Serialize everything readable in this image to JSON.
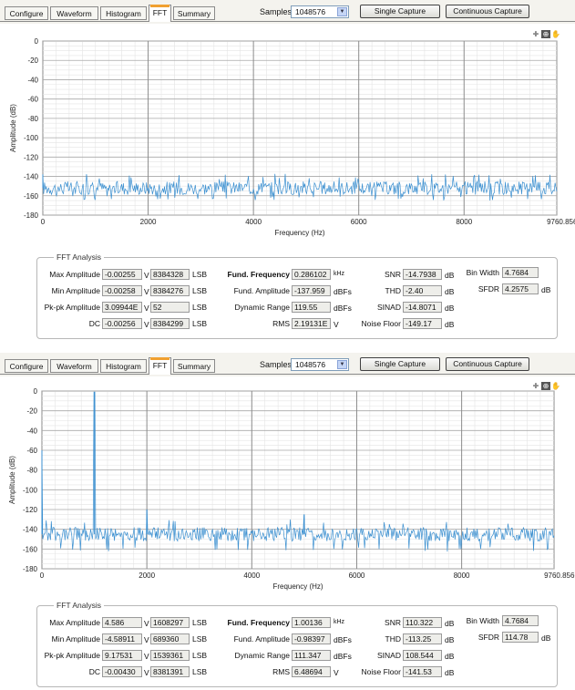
{
  "tabs": [
    "Configure",
    "Waveform",
    "Histogram",
    "FFT",
    "Summary"
  ],
  "active_tab": "FFT",
  "samples_label": "Samples",
  "samples_value": "1048576",
  "buttons": {
    "single": "Single Capture",
    "continuous": "Continuous Capture"
  },
  "plot": {
    "y_ticks": [
      "0",
      "-20",
      "-40",
      "-60",
      "-80",
      "-100",
      "-120",
      "-140",
      "-160",
      "-180"
    ],
    "x_ticks": [
      "0",
      "2000",
      "4000",
      "6000",
      "8000",
      "9760.8566"
    ],
    "ylabel": "Amplitude (dB)",
    "xlabel": "Frequency (Hz)"
  },
  "fft_title": "FFT Analysis",
  "panels": [
    {
      "fft": {
        "max_amplitude": {
          "label": "Max Amplitude",
          "v": "-0.00255",
          "v_unit": "V",
          "lsb": "8384328",
          "lsb_unit": "LSB"
        },
        "min_amplitude": {
          "label": "Min Amplitude",
          "v": "-0.00258",
          "v_unit": "V",
          "lsb": "8384276",
          "lsb_unit": "LSB"
        },
        "pk_pk_amplitude": {
          "label": "Pk-pk Amplitude",
          "v": "3.09944E",
          "v_unit": "V",
          "lsb": "52",
          "lsb_unit": "LSB"
        },
        "dc": {
          "label": "DC",
          "v": "-0.00256",
          "v_unit": "V",
          "lsb": "8384299",
          "lsb_unit": "LSB"
        },
        "fund_frequency": {
          "label": "Fund. Frequency",
          "value": "0.286102",
          "unit": "kHz"
        },
        "fund_amplitude": {
          "label": "Fund. Amplitude",
          "value": "-137.959",
          "unit": "dBFs"
        },
        "dynamic_range": {
          "label": "Dynamic Range",
          "value": "119.55",
          "unit": "dBFs"
        },
        "rms": {
          "label": "RMS",
          "value": "2.19131E",
          "unit": "V"
        },
        "snr": {
          "label": "SNR",
          "value": "-14.7938",
          "unit": "dB"
        },
        "thd": {
          "label": "THD",
          "value": "-2.40",
          "unit": "dB"
        },
        "sinad": {
          "label": "SINAD",
          "value": "-14.8071",
          "unit": "dB"
        },
        "noise_floor": {
          "label": "Noise Floor",
          "value": "-149.17",
          "unit": "dB"
        },
        "bin_width": {
          "label": "Bin Width",
          "value": "4.7684"
        },
        "sfdr": {
          "label": "SFDR",
          "value": "4.2575",
          "unit": "dB"
        }
      },
      "chart_data": {
        "type": "line",
        "xlabel": "Frequency (Hz)",
        "ylabel": "Amplitude (dB)",
        "xlim": [
          0,
          9760.8566
        ],
        "ylim": [
          -180,
          0
        ],
        "series": [
          {
            "baseline_db": -152,
            "noise_range_db": [
              -165,
              -137
            ],
            "spikes": [
              [
                0,
                -138
              ]
            ]
          }
        ]
      }
    },
    {
      "fft": {
        "max_amplitude": {
          "label": "Max Amplitude",
          "v": "4.586",
          "v_unit": "V",
          "lsb": "1608297",
          "lsb_unit": "LSB"
        },
        "min_amplitude": {
          "label": "Min Amplitude",
          "v": "-4.58911",
          "v_unit": "V",
          "lsb": "689360",
          "lsb_unit": "LSB"
        },
        "pk_pk_amplitude": {
          "label": "Pk-pk Amplitude",
          "v": "9.17531",
          "v_unit": "V",
          "lsb": "1539361",
          "lsb_unit": "LSB"
        },
        "dc": {
          "label": "DC",
          "v": "-0.00430",
          "v_unit": "V",
          "lsb": "8381391",
          "lsb_unit": "LSB"
        },
        "fund_frequency": {
          "label": "Fund. Frequency",
          "value": "1.00136",
          "unit": "kHz"
        },
        "fund_amplitude": {
          "label": "Fund. Amplitude",
          "value": "-0.98397",
          "unit": "dBFs"
        },
        "dynamic_range": {
          "label": "Dynamic Range",
          "value": "111.347",
          "unit": "dBFs"
        },
        "rms": {
          "label": "RMS",
          "value": "6.48694",
          "unit": "V"
        },
        "snr": {
          "label": "SNR",
          "value": "110.322",
          "unit": "dB"
        },
        "thd": {
          "label": "THD",
          "value": "-113.25",
          "unit": "dB"
        },
        "sinad": {
          "label": "SINAD",
          "value": "108.544",
          "unit": "dB"
        },
        "noise_floor": {
          "label": "Noise Floor",
          "value": "-141.53",
          "unit": "dB"
        },
        "bin_width": {
          "label": "Bin Width",
          "value": "4.7684"
        },
        "sfdr": {
          "label": "SFDR",
          "value": "114.78",
          "unit": "dB"
        }
      },
      "chart_data": {
        "type": "line",
        "xlabel": "Frequency (Hz)",
        "ylabel": "Amplitude (dB)",
        "xlim": [
          0,
          9760.8566
        ],
        "ylim": [
          -180,
          0
        ],
        "series": [
          {
            "baseline_db": -145,
            "noise_range_db": [
              -163,
              -130
            ],
            "spikes": [
              [
                0,
                -60
              ],
              [
                1001.36,
                -1
              ],
              [
                2000,
                -120
              ],
              [
                5000,
                -125
              ]
            ]
          }
        ]
      }
    }
  ]
}
